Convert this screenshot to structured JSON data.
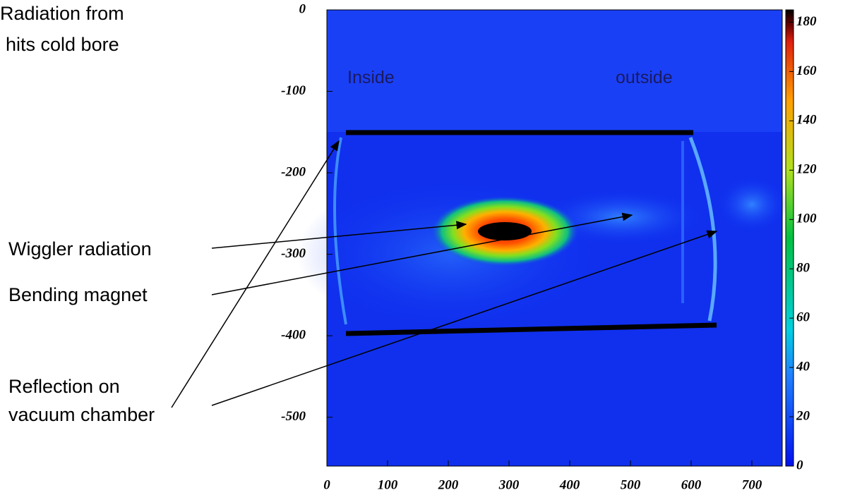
{
  "chart_data": {
    "type": "heatmap",
    "xlim": [
      0,
      750
    ],
    "xticks": [
      0,
      100,
      200,
      300,
      400,
      500,
      600,
      700
    ],
    "ylim": [
      -560,
      0
    ],
    "yticks": [
      0,
      -100,
      -200,
      -300,
      -400,
      -500
    ],
    "zlim": [
      0,
      185
    ],
    "zticks": [
      0,
      20,
      40,
      60,
      80,
      100,
      120,
      140,
      160,
      180
    ],
    "annotations": [
      {
        "lines": [
          "Radiation from",
          "hits cold bore"
        ]
      },
      {
        "lines": [
          "Inside"
        ]
      },
      {
        "lines": [
          "outside"
        ]
      },
      {
        "lines": [
          "Wiggler radiation"
        ]
      },
      {
        "lines": [
          "Bending magnet"
        ]
      },
      {
        "lines": [
          "Reflection on",
          "vacuum chamber"
        ]
      }
    ]
  }
}
